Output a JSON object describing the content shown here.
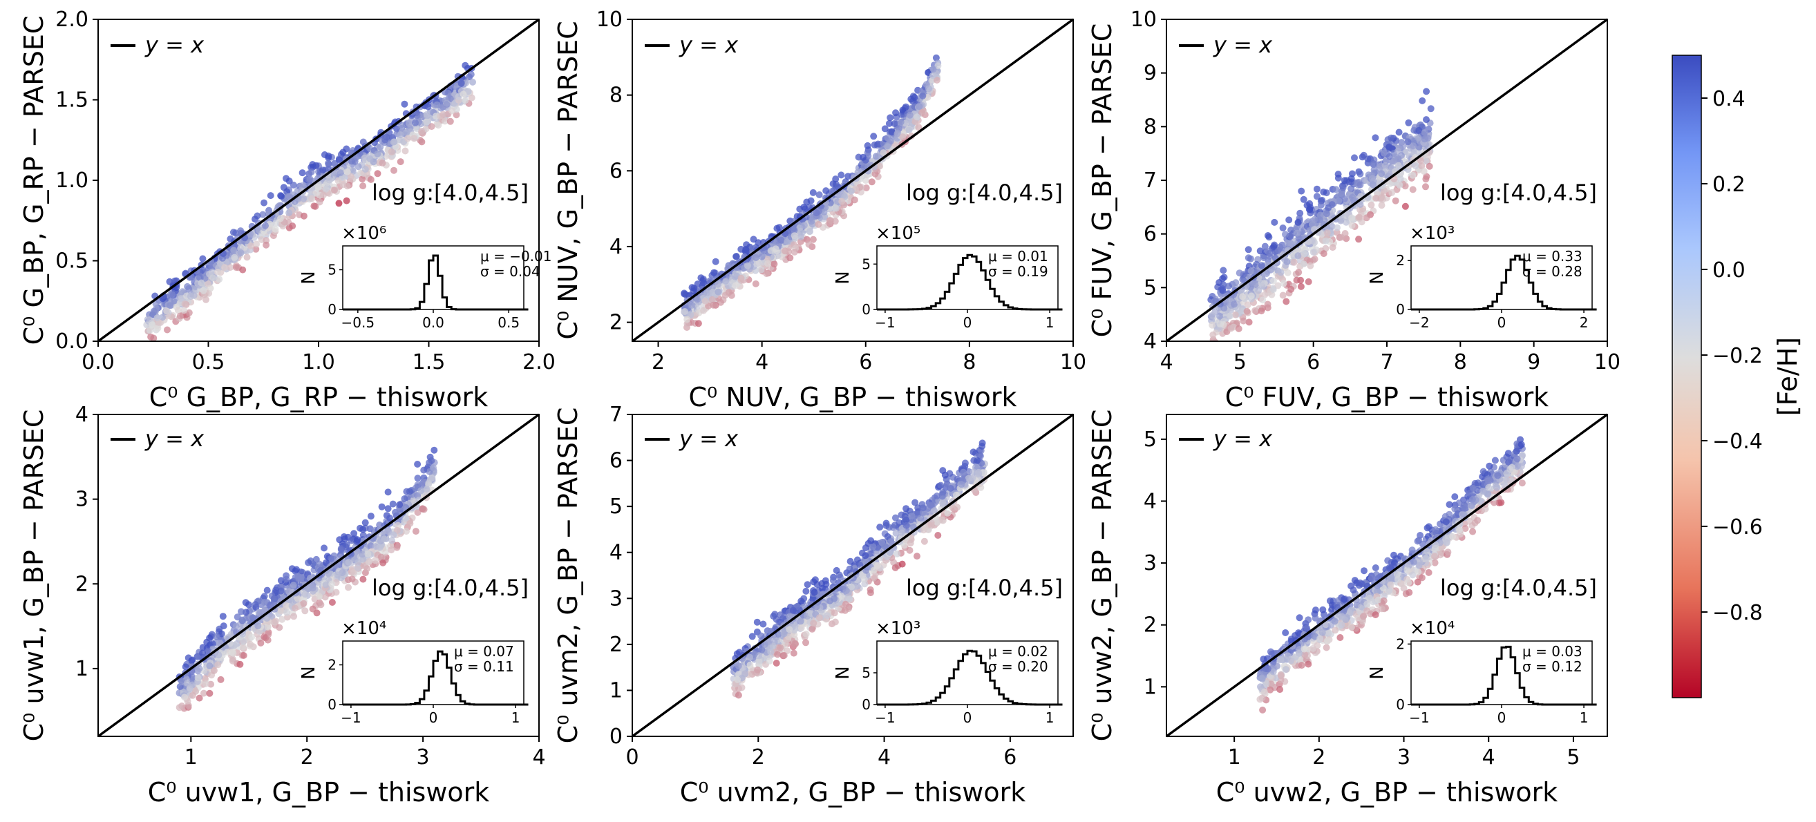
{
  "figure": {
    "colorbar": {
      "label": "[Fe/H]",
      "range": [
        -1.0,
        0.5
      ],
      "ticks": [
        0.4,
        0.2,
        0.0,
        -0.2,
        -0.4,
        -0.6,
        -0.8
      ],
      "tick_labels": [
        "0.4",
        "0.2",
        "0.0",
        "−0.2",
        "−0.4",
        "−0.6",
        "−0.8"
      ],
      "colors": {
        "low": "#b40426",
        "mid": "#dddddd",
        "high": "#3b4cc0"
      }
    }
  },
  "chart_data": [
    {
      "type": "scatter",
      "band": "G_RP",
      "xlabel": "C⁰ G_BP, G_RP − thiswork",
      "ylabel": "C⁰ G_BP, G_RP − PARSEC",
      "xlim": [
        0.0,
        2.0
      ],
      "ylim": [
        0.0,
        2.0
      ],
      "xticks": [
        0.0,
        0.5,
        1.0,
        1.5,
        2.0
      ],
      "xtick_labels": [
        "0.0",
        "0.5",
        "1.0",
        "1.5",
        "2.0"
      ],
      "yticks": [
        0.0,
        0.5,
        1.0,
        1.5,
        2.0
      ],
      "ytick_labels": [
        "0.0",
        "0.5",
        "1.0",
        "1.5",
        "2.0"
      ],
      "legend": "y = x",
      "annotation": "log g:[4.0,4.5]",
      "trend": [
        [
          0.22,
          0.12
        ],
        [
          0.45,
          0.35
        ],
        [
          0.7,
          0.65
        ],
        [
          1.0,
          1.0
        ],
        [
          1.25,
          1.15
        ],
        [
          1.5,
          1.4
        ],
        [
          1.7,
          1.6
        ]
      ],
      "spread": 0.09,
      "inset": {
        "multiplier": "×10⁶",
        "mu": "μ = −0.01",
        "sigma": "σ = 0.04",
        "xlim": [
          -0.6,
          0.6
        ],
        "xticks": [
          -0.5,
          0.0,
          0.5
        ],
        "xtick_labels": [
          "−0.5",
          "0.0",
          "0.5"
        ],
        "ylim": [
          0,
          8
        ],
        "yticks": [
          0,
          5
        ],
        "ytick_labels": [
          "0",
          "5"
        ],
        "ylabel": "N",
        "peak": 7.0
      },
      "mu": -0.01,
      "sigma": 0.04
    },
    {
      "type": "scatter",
      "band": "NUV",
      "xlabel": "C⁰ NUV, G_BP − thiswork",
      "ylabel": "C⁰ NUV, G_BP − PARSEC",
      "xlim": [
        1.5,
        10.0
      ],
      "ylim": [
        1.5,
        10.0
      ],
      "xticks": [
        2,
        4,
        6,
        8,
        10
      ],
      "xtick_labels": [
        "2",
        "4",
        "6",
        "8",
        "10"
      ],
      "yticks": [
        2,
        4,
        6,
        8,
        10
      ],
      "ytick_labels": [
        "2",
        "4",
        "6",
        "8",
        "10"
      ],
      "legend": "y = x",
      "annotation": "log g:[4.0,4.5]",
      "trend": [
        [
          2.5,
          2.3
        ],
        [
          3.5,
          3.3
        ],
        [
          4.5,
          4.2
        ],
        [
          5.5,
          5.3
        ],
        [
          6.3,
          6.5
        ],
        [
          7.0,
          7.6
        ],
        [
          7.4,
          8.8
        ]
      ],
      "spread": 0.35,
      "inset": {
        "multiplier": "×10⁵",
        "mu": "μ = 0.01",
        "sigma": "σ = 0.19",
        "xlim": [
          -1.1,
          1.1
        ],
        "xticks": [
          -1,
          0,
          1
        ],
        "xtick_labels": [
          "−1",
          "0",
          "1"
        ],
        "ylim": [
          0,
          7
        ],
        "yticks": [
          0,
          5
        ],
        "ytick_labels": [
          "0",
          "5"
        ],
        "ylabel": "N",
        "peak": 6.0
      },
      "mu": 0.01,
      "sigma": 0.19
    },
    {
      "type": "scatter",
      "band": "FUV",
      "xlabel": "C⁰ FUV, G_BP − thiswork",
      "ylabel": "C⁰ FUV, G_BP − PARSEC",
      "xlim": [
        4.0,
        10.0
      ],
      "ylim": [
        4.0,
        10.0
      ],
      "xticks": [
        4,
        5,
        6,
        7,
        8,
        9,
        10
      ],
      "xtick_labels": [
        "4",
        "5",
        "6",
        "7",
        "8",
        "9",
        "10"
      ],
      "yticks": [
        4,
        5,
        6,
        7,
        8,
        9,
        10
      ],
      "ytick_labels": [
        "4",
        "5",
        "6",
        "7",
        "8",
        "9",
        "10"
      ],
      "legend": "y = x",
      "annotation": "log g:[4.0,4.5]",
      "trend": [
        [
          4.6,
          4.4
        ],
        [
          5.2,
          5.1
        ],
        [
          5.8,
          5.8
        ],
        [
          6.4,
          6.5
        ],
        [
          7.0,
          7.2
        ],
        [
          7.6,
          7.8
        ]
      ],
      "spread": 0.45,
      "inset": {
        "multiplier": "×10³",
        "mu": "μ = 0.33",
        "sigma": "σ = 0.28",
        "xlim": [
          -2.2,
          2.2
        ],
        "xticks": [
          -2,
          0,
          2
        ],
        "xtick_labels": [
          "−2",
          "0",
          "2"
        ],
        "ylim": [
          0,
          2.6
        ],
        "yticks": [
          0,
          2
        ],
        "ytick_labels": [
          "0",
          "2"
        ],
        "ylabel": "N",
        "peak": 2.2
      },
      "mu": 0.33,
      "sigma": 0.28
    },
    {
      "type": "scatter",
      "band": "uvw1",
      "xlabel": "C⁰ uvw1, G_BP − thiswork",
      "ylabel": "C⁰ uvw1, G_BP − PARSEC",
      "xlim": [
        0.2,
        4.0
      ],
      "ylim": [
        0.2,
        4.0
      ],
      "xticks": [
        1,
        2,
        3,
        4
      ],
      "xtick_labels": [
        "1",
        "2",
        "3",
        "4"
      ],
      "yticks": [
        1,
        2,
        3,
        4
      ],
      "ytick_labels": [
        "1",
        "2",
        "3",
        "4"
      ],
      "legend": "y = x",
      "annotation": "log g:[4.0,4.5]",
      "trend": [
        [
          0.9,
          0.7
        ],
        [
          1.3,
          1.3
        ],
        [
          1.8,
          1.8
        ],
        [
          2.3,
          2.2
        ],
        [
          2.7,
          2.6
        ],
        [
          3.1,
          3.3
        ]
      ],
      "spread": 0.2,
      "inset": {
        "multiplier": "×10⁴",
        "mu": "μ = 0.07",
        "sigma": "σ = 0.11",
        "xlim": [
          -1.1,
          1.1
        ],
        "xticks": [
          -1,
          0,
          1
        ],
        "xtick_labels": [
          "−1",
          "0",
          "1"
        ],
        "ylim": [
          0,
          3.2
        ],
        "yticks": [
          0,
          2
        ],
        "ytick_labels": [
          "0",
          "2"
        ],
        "ylabel": "N",
        "peak": 2.7
      },
      "mu": 0.07,
      "sigma": 0.11
    },
    {
      "type": "scatter",
      "band": "uvm2",
      "xlabel": "C⁰ uvm2, G_BP − thiswork",
      "ylabel": "C⁰ uvm2, G_BP − PARSEC",
      "xlim": [
        0.0,
        7.0
      ],
      "ylim": [
        0.0,
        7.0
      ],
      "xticks": [
        0,
        2,
        4,
        6
      ],
      "xtick_labels": [
        "0",
        "2",
        "4",
        "6"
      ],
      "yticks": [
        0,
        1,
        2,
        3,
        4,
        5,
        6,
        7
      ],
      "ytick_labels": [
        "0",
        "1",
        "2",
        "3",
        "4",
        "5",
        "6",
        "7"
      ],
      "legend": "y = x",
      "annotation": "log g:[4.0,4.5]",
      "trend": [
        [
          1.6,
          1.3
        ],
        [
          2.5,
          2.4
        ],
        [
          3.3,
          3.1
        ],
        [
          4.2,
          4.3
        ],
        [
          5.0,
          5.2
        ],
        [
          5.6,
          5.9
        ]
      ],
      "spread": 0.35,
      "inset": {
        "multiplier": "×10³",
        "mu": "μ = 0.02",
        "sigma": "σ = 0.20",
        "xlim": [
          -1.1,
          1.1
        ],
        "xticks": [
          -1,
          0,
          1
        ],
        "xtick_labels": [
          "−1",
          "0",
          "1"
        ],
        "ylim": [
          0,
          10
        ],
        "yticks": [
          0,
          5
        ],
        "ytick_labels": [
          "0",
          "5"
        ],
        "ylabel": "N",
        "peak": 8.5
      },
      "mu": 0.02,
      "sigma": 0.2
    },
    {
      "type": "scatter",
      "band": "uvw2",
      "xlabel": "C⁰ uvw2, G_BP − thiswork",
      "ylabel": "C⁰ uvw2, G_BP − PARSEC",
      "xlim": [
        0.2,
        5.4
      ],
      "ylim": [
        0.2,
        5.4
      ],
      "xticks": [
        1,
        2,
        3,
        4,
        5
      ],
      "xtick_labels": [
        "1",
        "2",
        "3",
        "4",
        "5"
      ],
      "yticks": [
        1,
        2,
        3,
        4,
        5
      ],
      "ytick_labels": [
        "1",
        "2",
        "3",
        "4",
        "5"
      ],
      "legend": "y = x",
      "annotation": "log g:[4.0,4.5]",
      "trend": [
        [
          1.3,
          1.1
        ],
        [
          2.0,
          1.9
        ],
        [
          2.7,
          2.6
        ],
        [
          3.3,
          3.2
        ],
        [
          3.9,
          4.1
        ],
        [
          4.4,
          4.7
        ]
      ],
      "spread": 0.25,
      "inset": {
        "multiplier": "×10⁴",
        "mu": "μ = 0.03",
        "sigma": "σ = 0.12",
        "xlim": [
          -1.1,
          1.1
        ],
        "xticks": [
          -1,
          0,
          1
        ],
        "xtick_labels": [
          "−1",
          "0",
          "1"
        ],
        "ylim": [
          0,
          2.1
        ],
        "yticks": [
          0,
          2
        ],
        "ytick_labels": [
          "0",
          "2"
        ],
        "ylabel": "N",
        "peak": 1.95
      },
      "mu": 0.03,
      "sigma": 0.12
    }
  ]
}
